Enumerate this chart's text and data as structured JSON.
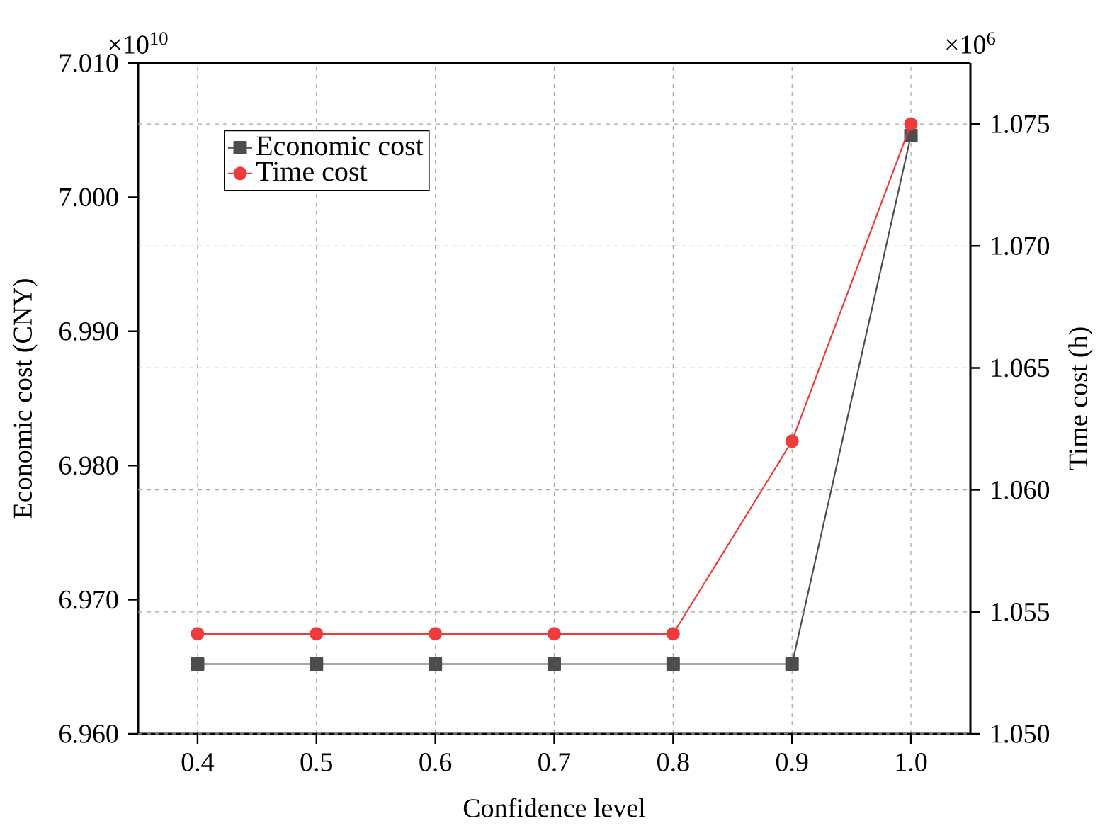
{
  "chart_data": {
    "type": "line",
    "xlabel": "Confidence  level",
    "ylabel": "Economic cost (CNY)",
    "y2label": "Time cost (h)",
    "x": [
      0.4,
      0.5,
      0.6,
      0.7,
      0.8,
      0.9,
      1.0
    ],
    "series": [
      {
        "name": "Economic cost",
        "color": "#4d4d4d",
        "marker": "square",
        "values": [
          6.9652,
          6.9652,
          6.9652,
          6.9652,
          6.9652,
          6.9652,
          7.0046
        ]
      },
      {
        "name": "Time cost",
        "color": "#ef3b3b",
        "marker": "circle",
        "axis": "y2",
        "values": [
          1.0541,
          1.0541,
          1.0541,
          1.0541,
          1.0541,
          1.062,
          1.075
        ]
      }
    ],
    "xlim": [
      0.35,
      1.05
    ],
    "xticks": [
      {
        "value": 0.4,
        "label": "0.4"
      },
      {
        "value": 0.5,
        "label": "0.5"
      },
      {
        "value": 0.6,
        "label": "0.6"
      },
      {
        "value": 0.7,
        "label": "0.7"
      },
      {
        "value": 0.8,
        "label": "0.8"
      },
      {
        "value": 0.9,
        "label": "0.9"
      },
      {
        "value": 1.0,
        "label": "1.0"
      }
    ],
    "ylim": [
      6.96,
      7.01
    ],
    "yticks": [
      {
        "value": 6.96,
        "label": "6.960"
      },
      {
        "value": 6.97,
        "label": "6.970"
      },
      {
        "value": 6.98,
        "label": "6.980"
      },
      {
        "value": 6.99,
        "label": "6.990"
      },
      {
        "value": 7.0,
        "label": "7.000"
      },
      {
        "value": 7.01,
        "label": "7.010"
      }
    ],
    "y2lim": [
      1.05,
      1.0775
    ],
    "y2ticks": [
      {
        "value": 1.05,
        "label": "1.050"
      },
      {
        "value": 1.055,
        "label": "1.055"
      },
      {
        "value": 1.06,
        "label": "1.060"
      },
      {
        "value": 1.065,
        "label": "1.065"
      },
      {
        "value": 1.07,
        "label": "1.070"
      },
      {
        "value": 1.075,
        "label": "1.075"
      }
    ],
    "annotations": [
      "×10$^{10}$",
      "×10$^{6}$"
    ],
    "grid": true,
    "legend": "top left",
    "line_style": "solid"
  }
}
